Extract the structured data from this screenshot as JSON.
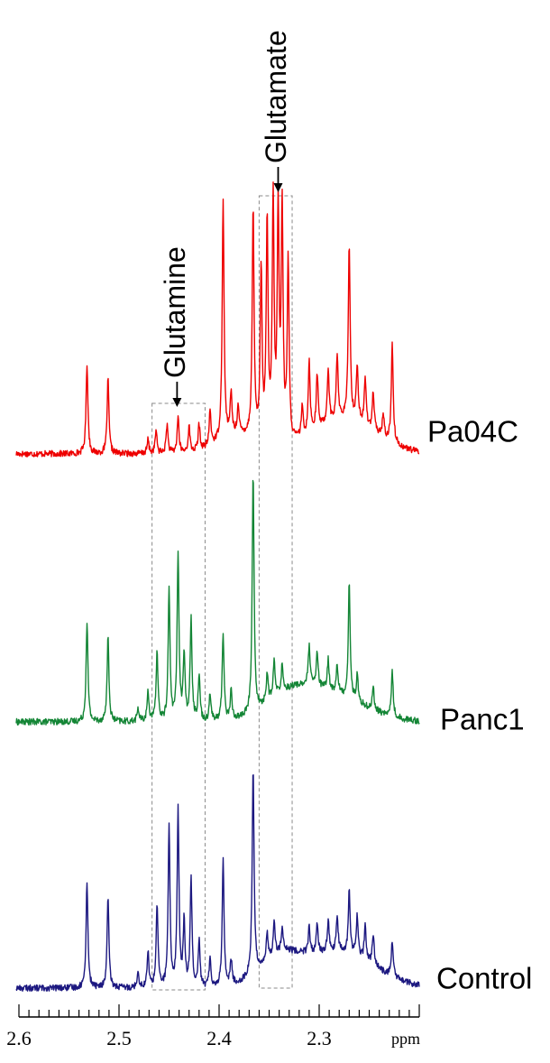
{
  "chart_data": {
    "type": "line",
    "title": "",
    "xlabel": "ppm",
    "ylabel": "",
    "xlim": [
      2.6,
      2.2
    ],
    "x_reversed": true,
    "x_ticks": [
      "2.6",
      "2.5",
      "2.4",
      "2.3"
    ],
    "grid": false,
    "series": [
      {
        "name": "Pa04C",
        "color": "#ee0000",
        "peaks": [
          {
            "ppm": 2.532,
            "height": 100
          },
          {
            "ppm": 2.511,
            "height": 82
          },
          {
            "ppm": 2.471,
            "height": 15
          },
          {
            "ppm": 2.463,
            "height": 25
          },
          {
            "ppm": 2.452,
            "height": 32
          },
          {
            "ppm": 2.441,
            "height": 40
          },
          {
            "ppm": 2.43,
            "height": 28
          },
          {
            "ppm": 2.42,
            "height": 28
          },
          {
            "ppm": 2.409,
            "height": 38
          },
          {
            "ppm": 2.396,
            "height": 265
          },
          {
            "ppm": 2.388,
            "height": 45
          },
          {
            "ppm": 2.381,
            "height": 30
          },
          {
            "ppm": 2.366,
            "height": 252
          },
          {
            "ppm": 2.358,
            "height": 185
          },
          {
            "ppm": 2.352,
            "height": 240
          },
          {
            "ppm": 2.346,
            "height": 265
          },
          {
            "ppm": 2.341,
            "height": 250
          },
          {
            "ppm": 2.337,
            "height": 255
          },
          {
            "ppm": 2.331,
            "height": 200
          },
          {
            "ppm": 2.317,
            "height": 32
          },
          {
            "ppm": 2.31,
            "height": 80
          },
          {
            "ppm": 2.302,
            "height": 60
          },
          {
            "ppm": 2.291,
            "height": 60
          },
          {
            "ppm": 2.282,
            "height": 72
          },
          {
            "ppm": 2.27,
            "height": 195
          },
          {
            "ppm": 2.262,
            "height": 62
          },
          {
            "ppm": 2.254,
            "height": 52
          },
          {
            "ppm": 2.246,
            "height": 42
          },
          {
            "ppm": 2.236,
            "height": 25
          },
          {
            "ppm": 2.227,
            "height": 110
          }
        ]
      },
      {
        "name": "Panc1",
        "color": "#138535",
        "peaks": [
          {
            "ppm": 2.532,
            "height": 108
          },
          {
            "ppm": 2.511,
            "height": 90
          },
          {
            "ppm": 2.481,
            "height": 14
          },
          {
            "ppm": 2.471,
            "height": 32
          },
          {
            "ppm": 2.462,
            "height": 75
          },
          {
            "ppm": 2.45,
            "height": 140
          },
          {
            "ppm": 2.441,
            "height": 180
          },
          {
            "ppm": 2.435,
            "height": 70
          },
          {
            "ppm": 2.428,
            "height": 110
          },
          {
            "ppm": 2.42,
            "height": 50
          },
          {
            "ppm": 2.409,
            "height": 30
          },
          {
            "ppm": 2.396,
            "height": 95
          },
          {
            "ppm": 2.388,
            "height": 30
          },
          {
            "ppm": 2.366,
            "height": 260
          },
          {
            "ppm": 2.352,
            "height": 30
          },
          {
            "ppm": 2.345,
            "height": 38
          },
          {
            "ppm": 2.337,
            "height": 28
          },
          {
            "ppm": 2.31,
            "height": 42
          },
          {
            "ppm": 2.302,
            "height": 36
          },
          {
            "ppm": 2.291,
            "height": 32
          },
          {
            "ppm": 2.282,
            "height": 30
          },
          {
            "ppm": 2.27,
            "height": 125
          },
          {
            "ppm": 2.262,
            "height": 28
          },
          {
            "ppm": 2.246,
            "height": 24
          },
          {
            "ppm": 2.227,
            "height": 48
          }
        ]
      },
      {
        "name": "Control",
        "color": "#1c1880",
        "peaks": [
          {
            "ppm": 2.532,
            "height": 118
          },
          {
            "ppm": 2.511,
            "height": 98
          },
          {
            "ppm": 2.481,
            "height": 18
          },
          {
            "ppm": 2.471,
            "height": 38
          },
          {
            "ppm": 2.462,
            "height": 92
          },
          {
            "ppm": 2.45,
            "height": 175
          },
          {
            "ppm": 2.441,
            "height": 195
          },
          {
            "ppm": 2.435,
            "height": 70
          },
          {
            "ppm": 2.428,
            "height": 120
          },
          {
            "ppm": 2.42,
            "height": 52
          },
          {
            "ppm": 2.409,
            "height": 32
          },
          {
            "ppm": 2.396,
            "height": 140
          },
          {
            "ppm": 2.388,
            "height": 28
          },
          {
            "ppm": 2.366,
            "height": 230
          },
          {
            "ppm": 2.352,
            "height": 28
          },
          {
            "ppm": 2.345,
            "height": 38
          },
          {
            "ppm": 2.337,
            "height": 25
          },
          {
            "ppm": 2.31,
            "height": 28
          },
          {
            "ppm": 2.302,
            "height": 30
          },
          {
            "ppm": 2.291,
            "height": 34
          },
          {
            "ppm": 2.282,
            "height": 38
          },
          {
            "ppm": 2.27,
            "height": 68
          },
          {
            "ppm": 2.262,
            "height": 45
          },
          {
            "ppm": 2.254,
            "height": 38
          },
          {
            "ppm": 2.246,
            "height": 35
          },
          {
            "ppm": 2.227,
            "height": 40
          }
        ]
      }
    ],
    "annotations": [
      {
        "label": "Glutamine",
        "ppm_range": [
          2.467,
          2.414
        ],
        "arrow_ppm": 2.442
      },
      {
        "label": "Glutamate",
        "ppm_range": [
          2.36,
          2.327
        ],
        "arrow_ppm": 2.341
      }
    ]
  }
}
